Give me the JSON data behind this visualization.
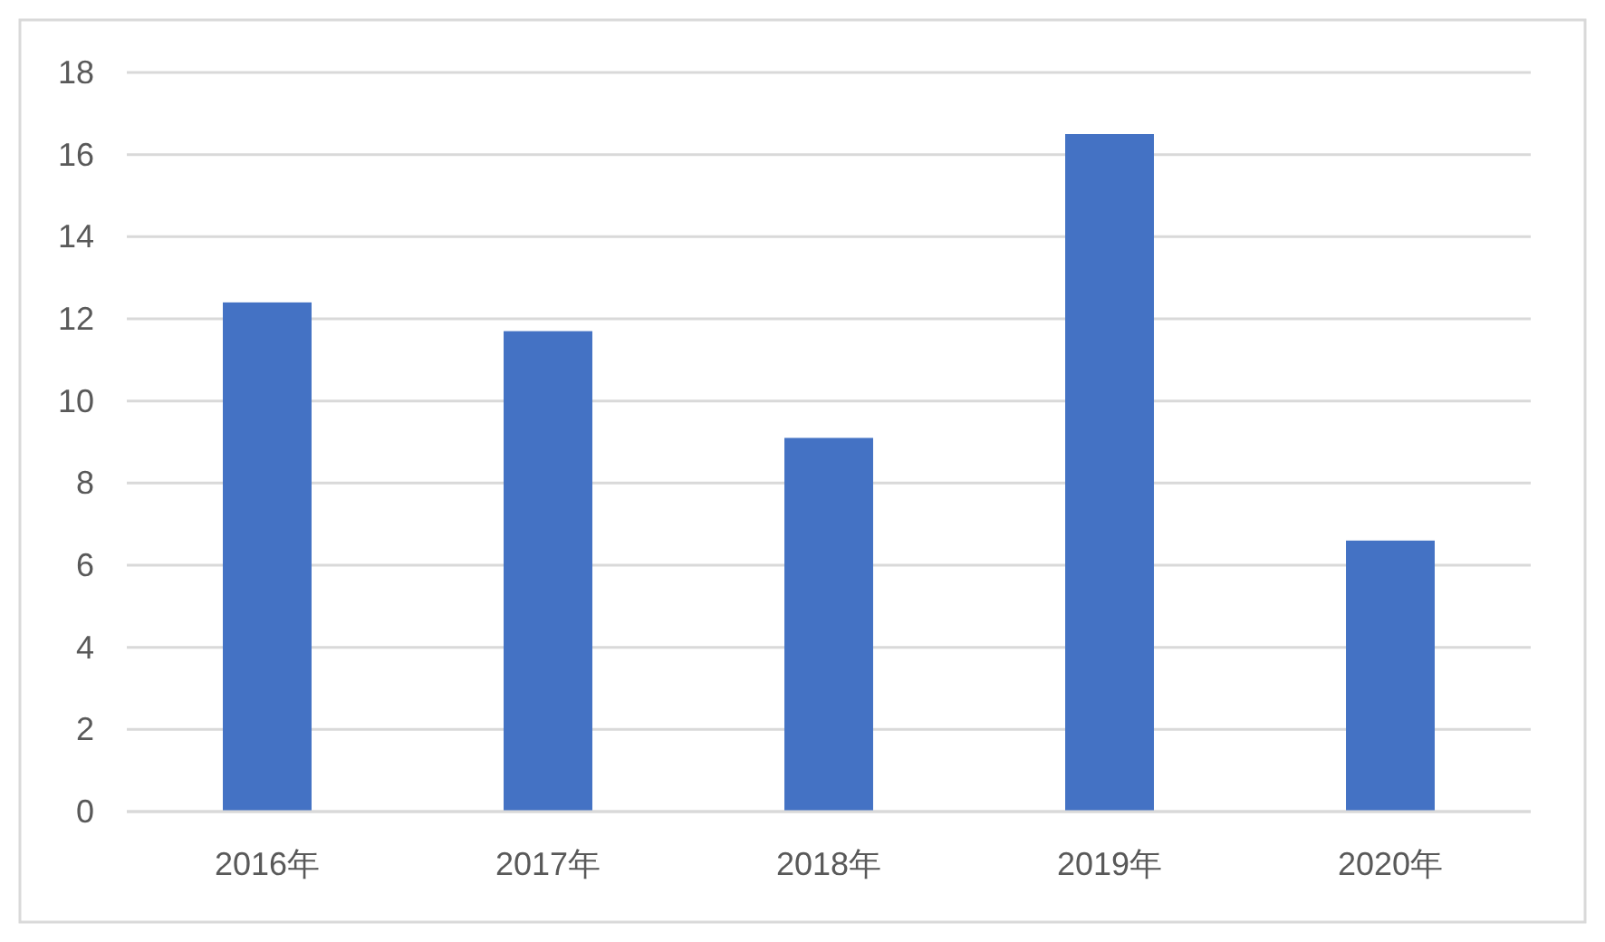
{
  "chart_data": {
    "type": "bar",
    "categories": [
      "2016年",
      "2017年",
      "2018年",
      "2019年",
      "2020年"
    ],
    "values": [
      12.4,
      11.7,
      9.1,
      16.5,
      6.6
    ],
    "color": "#4472c4",
    "ylim": [
      0,
      18
    ],
    "yticks": [
      0,
      2,
      4,
      6,
      8,
      10,
      12,
      14,
      16,
      18
    ],
    "grid": "y"
  }
}
